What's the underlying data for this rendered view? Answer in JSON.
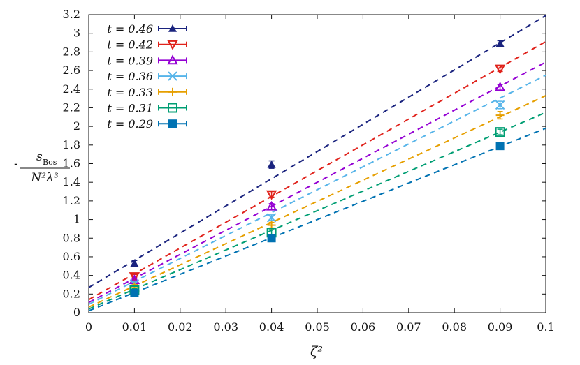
{
  "chart_data": {
    "type": "scatter",
    "title": "",
    "xlabel": "ζ²",
    "ylabel": {
      "prefix": "-",
      "numerator": "s",
      "numerator_sub": "Bos",
      "denominator": "N²λ³"
    },
    "xlim": [
      0,
      0.1
    ],
    "ylim": [
      0,
      3.2
    ],
    "x_ticks": [
      0,
      0.01,
      0.02,
      0.03,
      0.04,
      0.05,
      0.06,
      0.07,
      0.08,
      0.09,
      0.1
    ],
    "x_tick_labels": [
      "0",
      "0.01",
      "0.02",
      "0.03",
      "0.04",
      "0.05",
      "0.06",
      "0.07",
      "0.08",
      "0.09",
      "0.1"
    ],
    "y_ticks": [
      0,
      0.2,
      0.4,
      0.6,
      0.8,
      1,
      1.2,
      1.4,
      1.6,
      1.8,
      2,
      2.2,
      2.4,
      2.6,
      2.8,
      3,
      3.2
    ],
    "y_tick_labels": [
      "0",
      "0.2",
      "0.4",
      "0.6",
      "0.8",
      "1",
      "1.2",
      "1.4",
      "1.6",
      "1.8",
      "2",
      "2.2",
      "2.4",
      "2.6",
      "2.8",
      "3",
      "3.2"
    ],
    "grid": false,
    "legend_position": "top-left",
    "series": [
      {
        "name": "t = 0.46",
        "color": "#1a237e",
        "marker": "triangle-filled",
        "x": [
          0.01,
          0.04,
          0.09
        ],
        "y": [
          0.53,
          1.59,
          2.89
        ],
        "yerr": [
          0.03,
          0.04,
          0.03
        ],
        "fit": {
          "intercept": 0.27,
          "slope": 29.2
        }
      },
      {
        "name": "t = 0.42",
        "color": "#e0221b",
        "marker": "triangle-down-open",
        "x": [
          0.01,
          0.04,
          0.09
        ],
        "y": [
          0.39,
          1.27,
          2.62
        ],
        "yerr": [
          0.02,
          0.03,
          0.03
        ],
        "fit": {
          "intercept": 0.14,
          "slope": 27.7
        }
      },
      {
        "name": "t = 0.39",
        "color": "#9400d3",
        "marker": "triangle-open",
        "x": [
          0.01,
          0.04,
          0.09
        ],
        "y": [
          0.35,
          1.14,
          2.42
        ],
        "yerr": [
          0.02,
          0.03,
          0.03
        ],
        "fit": {
          "intercept": 0.11,
          "slope": 25.8
        }
      },
      {
        "name": "t = 0.36",
        "color": "#56b4e9",
        "marker": "x-cross",
        "x": [
          0.01,
          0.04,
          0.09
        ],
        "y": [
          0.31,
          1.02,
          2.23
        ],
        "yerr": [
          0.02,
          0.03,
          0.04
        ],
        "fit": {
          "intercept": 0.09,
          "slope": 24.6
        }
      },
      {
        "name": "t = 0.33",
        "color": "#e69f00",
        "marker": "plus",
        "x": [
          0.01,
          0.04,
          0.09
        ],
        "y": [
          0.28,
          0.94,
          2.12
        ],
        "yerr": [
          0.02,
          0.03,
          0.04
        ],
        "fit": {
          "intercept": 0.06,
          "slope": 22.7
        }
      },
      {
        "name": "t = 0.31",
        "color": "#009e73",
        "marker": "square-open",
        "x": [
          0.01,
          0.04,
          0.09
        ],
        "y": [
          0.24,
          0.86,
          1.94
        ],
        "yerr": [
          0.02,
          0.03,
          0.03
        ],
        "fit": {
          "intercept": 0.04,
          "slope": 21.1
        }
      },
      {
        "name": "t = 0.29",
        "color": "#0072b2",
        "marker": "square-filled",
        "x": [
          0.01,
          0.04,
          0.09
        ],
        "y": [
          0.21,
          0.8,
          1.79
        ],
        "yerr": [
          0.02,
          0.02,
          0.03
        ],
        "fit": {
          "intercept": 0.02,
          "slope": 19.6
        }
      }
    ]
  }
}
